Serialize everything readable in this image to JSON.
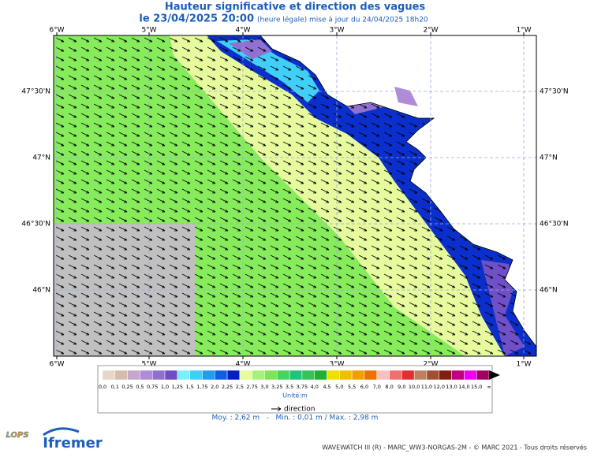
{
  "header": {
    "title": "Hauteur significative et direction des vagues",
    "date": "le 23/04/2025 20:00",
    "update": "(heure légale) mise à jour du 24/04/2025 18h20"
  },
  "map": {
    "lon_labels": [
      "6°W",
      "5°W",
      "4°W",
      "3°W",
      "2°W",
      "1°W"
    ],
    "lat_labels": [
      "47°30'N",
      "47°N",
      "46°30'N",
      "46°N"
    ]
  },
  "legend": {
    "labels": [
      "0,0",
      "0,1",
      "0,25",
      "0,5",
      "0,75",
      "1,0",
      "1,25",
      "1,5",
      "1,75",
      "2,0",
      "2,25",
      "2,5",
      "2,75",
      "3,0",
      "3,25",
      "3,5",
      "3,75",
      "4,0",
      "4,5",
      "5,0",
      "5,5",
      "6,0",
      "7,0",
      "8,0",
      "9,0",
      "10,0",
      "11,0",
      "12,0",
      "13,0",
      "14,0",
      "15,0",
      "∞"
    ],
    "colors": [
      "#e8d6c6",
      "#d6bcae",
      "#c8a6cc",
      "#b08cd8",
      "#9070d0",
      "#6f4ec6",
      "#7af0f8",
      "#40cff8",
      "#1f9ef0",
      "#0f5fe0",
      "#0020c0",
      "#e6fa9e",
      "#a6f278",
      "#7ee656",
      "#46d45e",
      "#22c27e",
      "#38c25c",
      "#20b030",
      "#f0e000",
      "#f0c000",
      "#f0a000",
      "#f07000",
      "#f8c0c0",
      "#f07070",
      "#e03030",
      "#c08060",
      "#a05030",
      "#802010",
      "#c00080",
      "#f000f0",
      "#a00060",
      "#000000"
    ],
    "unit": "Unité:m",
    "direction": "direction"
  },
  "stats": "Moy. : 2,62 m   -   Min. : 0,01 m / Max. : 2,98 m",
  "footer": {
    "credits": "WAVEWATCH III (R) - MARC_WW3-NORGAS-2M - © MARC 2021 - Tous droits réservés",
    "logos": [
      "LOPS",
      "Ifremer"
    ]
  }
}
